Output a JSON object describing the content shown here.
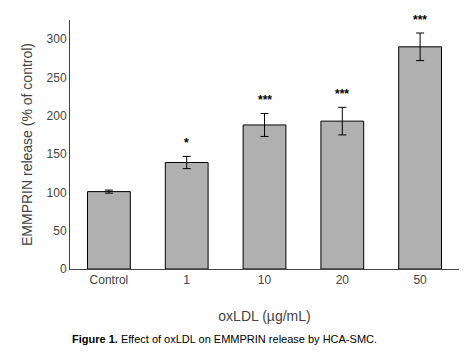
{
  "chart_data": {
    "type": "bar",
    "categories": [
      "Control",
      "1",
      "10",
      "20",
      "50"
    ],
    "values": [
      101,
      139,
      188,
      193,
      290
    ],
    "errors": [
      2,
      8,
      15,
      18,
      18
    ],
    "significance": [
      null,
      "*",
      "***",
      "***",
      "***"
    ],
    "color": "#b0b0b0",
    "xlabel": "oxLDL (µg/mL)",
    "ylabel": "EMMPRIN release (% of control)",
    "ylim": [
      0,
      325
    ],
    "yticks": [
      0,
      50,
      100,
      150,
      200,
      250,
      300
    ],
    "grid": false,
    "caption": [
      "Figure 1.",
      " Effect of oxLDL on EMMPRIN release by HCA-SMC."
    ]
  }
}
